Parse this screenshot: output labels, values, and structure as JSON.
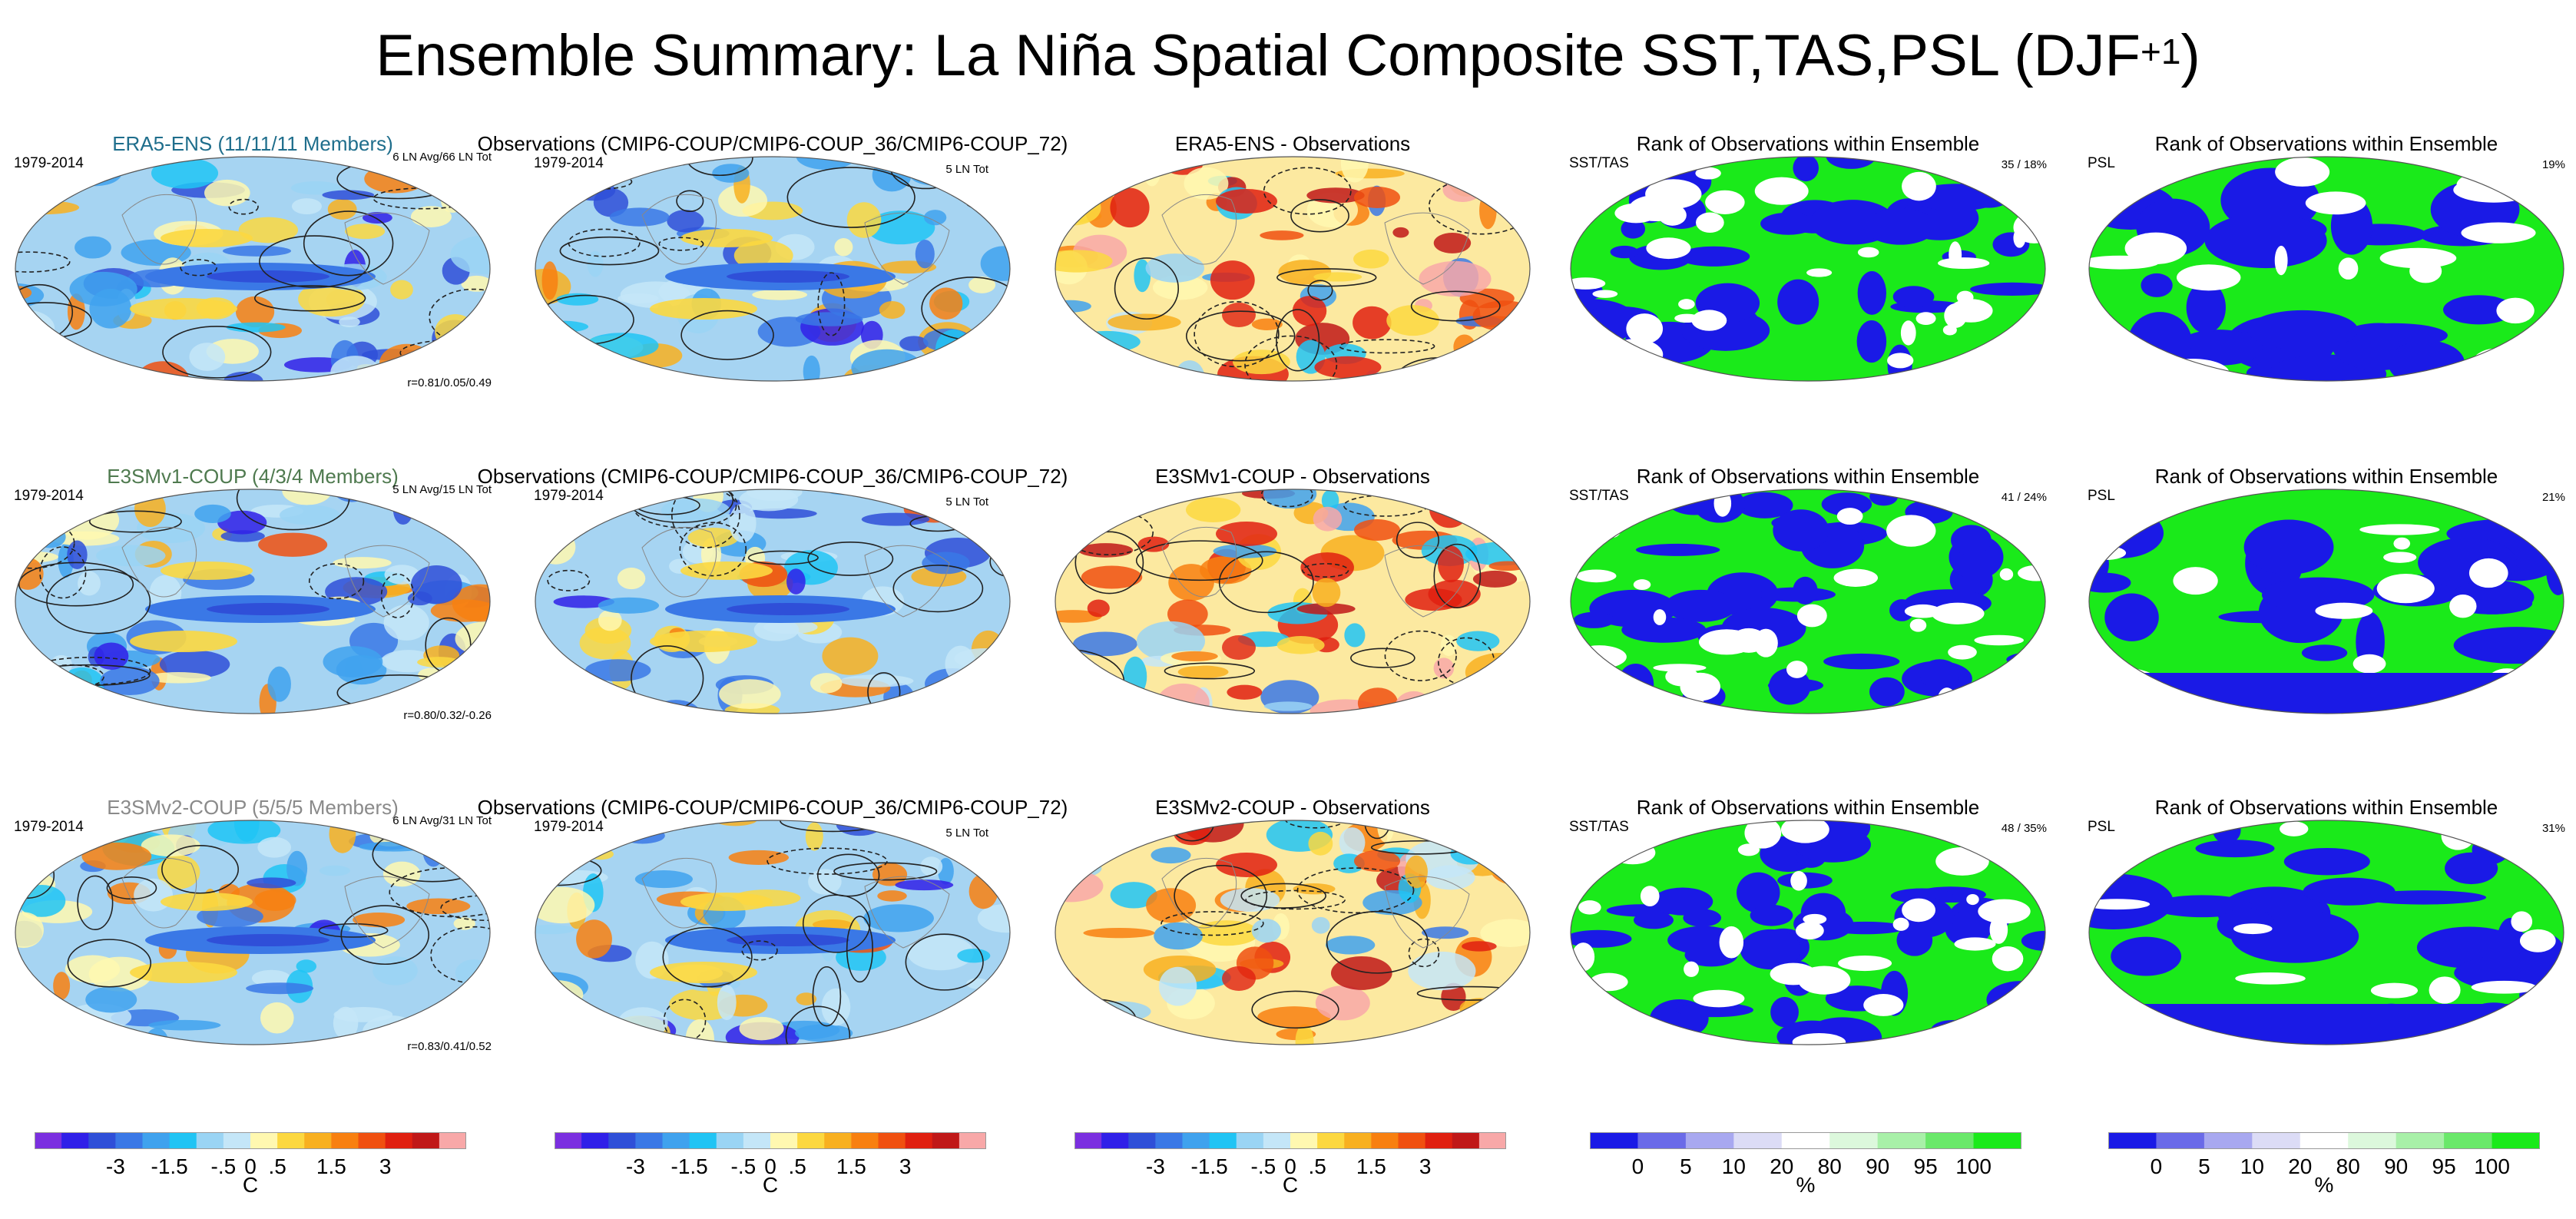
{
  "title": {
    "main": "Ensemble Summary: La Niña Spatial Composite SST,TAS,PSL (DJF",
    "sup": "+1",
    "close": ")"
  },
  "chart_data": {
    "type": "map-panel-grid",
    "rows": [
      {
        "model": "ERA5-ENS (11/11/11 Members)",
        "model_color": "#1f6e8c",
        "period": "1979-2014",
        "model_note": "6 LN Avg/66 LN Tot",
        "corr": "r=0.81/0.05/0.49",
        "obs_title": "Observations (CMIP6-COUP/CMIP6-COUP_36/CMIP6-COUP_72)",
        "obs_period": "1979-2014",
        "obs_note": "5 LN Tot",
        "diff_title": "ERA5-ENS - Observations",
        "rank_title": "Rank of Observations within Ensemble",
        "rank_label": "SST/TAS",
        "rank_value": "35 /  18%",
        "psl_title": "Rank of Observations within Ensemble",
        "psl_label": "PSL",
        "psl_value": "19%"
      },
      {
        "model": "E3SMv1-COUP (4/3/4 Members)",
        "model_color": "#4f7a4f",
        "period": "1979-2014",
        "model_note": "5 LN Avg/15 LN Tot",
        "corr": "r=0.80/0.32/-0.26",
        "obs_title": "Observations (CMIP6-COUP/CMIP6-COUP_36/CMIP6-COUP_72)",
        "obs_period": "1979-2014",
        "obs_note": "5 LN Tot",
        "diff_title": "E3SMv1-COUP - Observations",
        "rank_title": "Rank of Observations within Ensemble",
        "rank_label": "SST/TAS",
        "rank_value": "41 /  24%",
        "psl_title": "Rank of Observations within Ensemble",
        "psl_label": "PSL",
        "psl_value": "21%"
      },
      {
        "model": "E3SMv2-COUP (5/5/5 Members)",
        "model_color": "#8a8a8a",
        "period": "1979-2014",
        "model_note": "6 LN Avg/31 LN Tot",
        "corr": "r=0.83/0.41/0.52",
        "obs_title": "Observations (CMIP6-COUP/CMIP6-COUP_36/CMIP6-COUP_72)",
        "obs_period": "1979-2014",
        "obs_note": "5 LN Tot",
        "diff_title": "E3SMv2-COUP - Observations",
        "rank_title": "Rank of Observations within Ensemble",
        "rank_label": "SST/TAS",
        "rank_value": "48 /  35%",
        "psl_title": "Rank of Observations within Ensemble",
        "psl_label": "PSL",
        "psl_value": "31%"
      }
    ],
    "temp_colorbar": {
      "unit": "C",
      "tick_labels": [
        "-3",
        "-1.5",
        "-.5",
        "0",
        ".5",
        "1.5",
        "3"
      ],
      "colors": [
        "#7b2fe0",
        "#3020e8",
        "#2f4fd8",
        "#3a78e6",
        "#3fa2ee",
        "#20c4f4",
        "#9ad4f4",
        "#c4e6f8",
        "#fff8b0",
        "#fcd840",
        "#f8b020",
        "#f88010",
        "#f05010",
        "#e02010",
        "#c01818",
        "#f8a8a8"
      ]
    },
    "rank_colorbar": {
      "unit": "%",
      "tick_labels": [
        "0",
        "5",
        "10",
        "20",
        "80",
        "90",
        "95",
        "100"
      ],
      "colors": [
        "#1a1ae6",
        "#6a6ae8",
        "#a8a8f0",
        "#dcdcf6",
        "#ffffff",
        "#dcf8dc",
        "#a8f0a8",
        "#6ae86a",
        "#1aea1a"
      ]
    }
  }
}
